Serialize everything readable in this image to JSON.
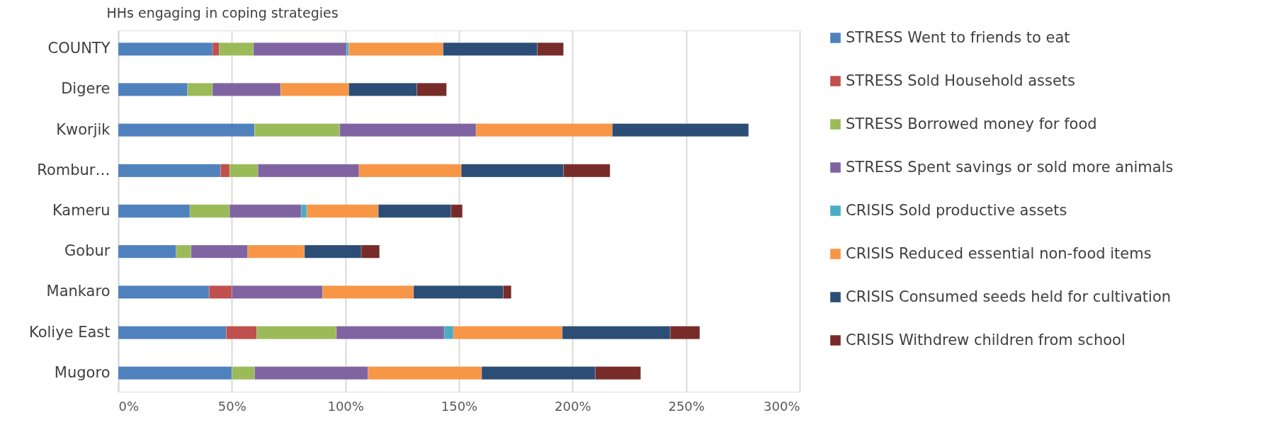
{
  "chart_data": {
    "type": "bar",
    "orientation": "horizontal",
    "stacked": true,
    "title": "HHs engaging in coping strategies",
    "categories": [
      "COUNTY",
      "Digere",
      "Kworjik",
      "Rombur…",
      "Kameru",
      "Gobur",
      "Mankaro",
      "Koliye East",
      "Mugoro"
    ],
    "series": [
      {
        "name": "STRESS Went to friends to eat",
        "color": "#4f81bd",
        "values": [
          41.5,
          30.5,
          60,
          45,
          31.5,
          25.5,
          40,
          47.5,
          50
        ]
      },
      {
        "name": "STRESS Sold Household assets",
        "color": "#c0504d",
        "values": [
          3,
          null,
          null,
          4,
          null,
          null,
          10,
          13.5,
          null
        ]
      },
      {
        "name": "STRESS Borrowed money for food",
        "color": "#9bbb59",
        "values": [
          15,
          11,
          37.5,
          12.5,
          17.5,
          6.5,
          null,
          35,
          10
        ]
      },
      {
        "name": "STRESS Spent savings or sold more animals",
        "color": "#8064a2",
        "values": [
          41,
          30,
          60,
          44.5,
          31.5,
          25,
          40,
          47.5,
          50
        ]
      },
      {
        "name": "CRISIS Sold productive assets",
        "color": "#4bacc6",
        "values": [
          1,
          null,
          null,
          null,
          2.5,
          null,
          null,
          4,
          null
        ]
      },
      {
        "name": "CRISIS Reduced essential non-food items",
        "color": "#f79646",
        "values": [
          41.5,
          30,
          60,
          45,
          31.5,
          25,
          40,
          48,
          50
        ]
      },
      {
        "name": "CRISIS Consumed seeds held for cultivation",
        "color": "#2c4d75",
        "values": [
          41.5,
          30,
          60,
          45,
          32,
          25,
          39.5,
          47.5,
          50
        ]
      },
      {
        "name": "CRISIS Withdrew children from school",
        "color": "#772c2a",
        "values": [
          11.5,
          13,
          null,
          20.5,
          5,
          8,
          3.5,
          13,
          20
        ]
      }
    ],
    "xlim": [
      0,
      300
    ],
    "xticks": [
      {
        "value": 0,
        "label": "0%"
      },
      {
        "value": 50,
        "label": "50%"
      },
      {
        "value": 100,
        "label": "100%"
      },
      {
        "value": 150,
        "label": "150%"
      },
      {
        "value": 200,
        "label": "200%"
      },
      {
        "value": 250,
        "label": "250%"
      },
      {
        "value": 300,
        "label": "300%"
      }
    ],
    "grid": "x",
    "legend": "right"
  }
}
